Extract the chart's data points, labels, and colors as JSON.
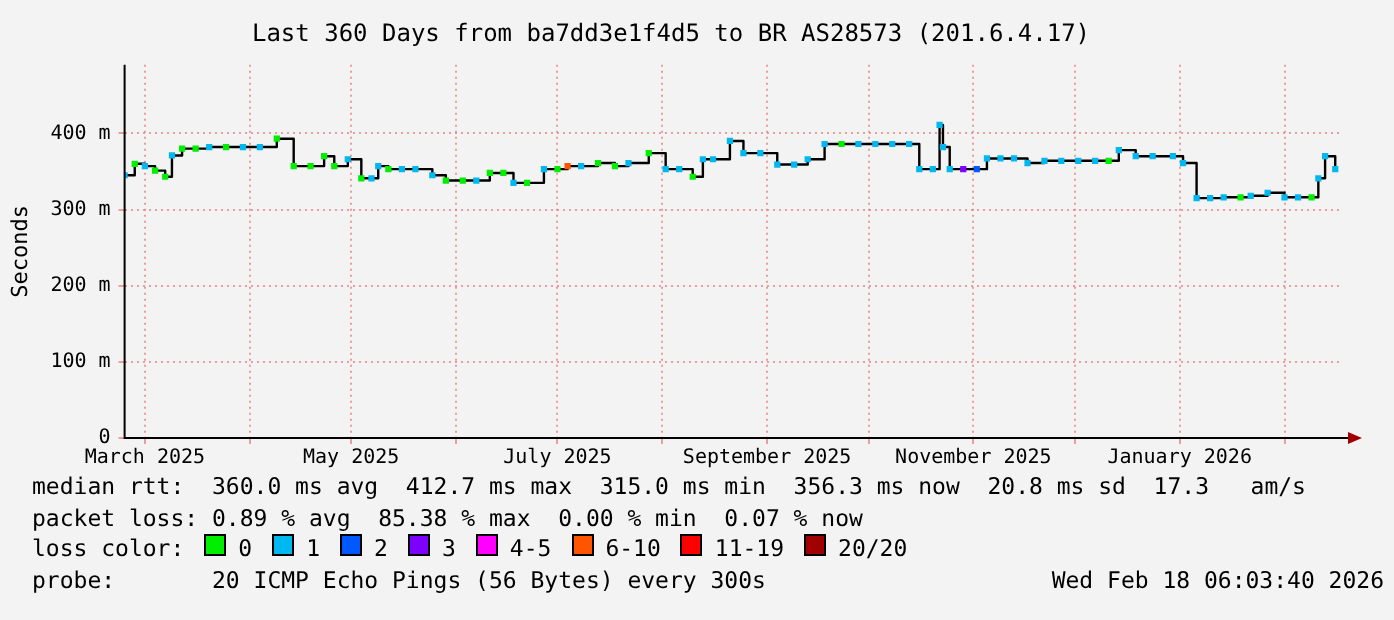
{
  "chart_data": {
    "type": "step",
    "title": "Last 360 Days from ba7dd3e1f4d5 to BR AS28573 (201.6.4.17)",
    "ylabel": "Seconds",
    "legend_title": "loss color:",
    "legend": "bottom",
    "grid": true,
    "x": [
      "2025-02-23",
      "2025-02-26",
      "2025-03-01",
      "2025-03-04",
      "2025-03-07",
      "2025-03-09",
      "2025-03-12",
      "2025-03-16",
      "2025-03-20",
      "2025-03-25",
      "2025-03-30",
      "2025-04-04",
      "2025-04-09",
      "2025-04-14",
      "2025-04-19",
      "2025-04-23",
      "2025-04-26",
      "2025-04-30",
      "2025-05-04",
      "2025-05-07",
      "2025-05-09",
      "2025-05-12",
      "2025-05-16",
      "2025-05-20",
      "2025-05-25",
      "2025-05-29",
      "2025-06-03",
      "2025-06-07",
      "2025-06-11",
      "2025-06-15",
      "2025-06-18",
      "2025-06-22",
      "2025-06-27",
      "2025-07-01",
      "2025-07-04",
      "2025-07-08",
      "2025-07-13",
      "2025-07-18",
      "2025-07-22",
      "2025-07-28",
      "2025-08-02",
      "2025-08-06",
      "2025-08-10",
      "2025-08-13",
      "2025-08-16",
      "2025-08-21",
      "2025-08-25",
      "2025-08-30",
      "2025-09-04",
      "2025-09-09",
      "2025-09-13",
      "2025-09-18",
      "2025-09-23",
      "2025-09-28",
      "2025-10-03",
      "2025-10-08",
      "2025-10-13",
      "2025-10-16",
      "2025-10-20",
      "2025-10-22",
      "2025-10-23",
      "2025-10-25",
      "2025-10-29",
      "2025-11-02",
      "2025-11-05",
      "2025-11-09",
      "2025-11-13",
      "2025-11-17",
      "2025-11-22",
      "2025-11-27",
      "2025-12-02",
      "2025-12-07",
      "2025-12-11",
      "2025-12-14",
      "2025-12-19",
      "2025-12-24",
      "2025-12-30",
      "2026-01-02",
      "2026-01-06",
      "2026-01-10",
      "2026-01-14",
      "2026-01-19",
      "2026-01-22",
      "2026-01-27",
      "2026-02-01",
      "2026-02-05",
      "2026-02-09",
      "2026-02-11",
      "2026-02-13",
      "2026-02-16"
    ],
    "series": [
      {
        "color": "#000000",
        "marker": "none",
        "values": [
          345,
          360,
          357,
          351,
          343,
          371,
          380,
          380,
          382,
          382,
          382,
          382,
          393,
          357,
          357,
          370,
          357,
          366,
          341,
          341,
          357,
          353,
          353,
          353,
          345,
          338,
          338,
          338,
          348,
          348,
          335,
          335,
          353,
          353,
          357,
          357,
          361,
          357,
          361,
          374,
          353,
          353,
          343,
          366,
          366,
          390,
          374,
          374,
          359,
          359,
          366,
          386,
          386,
          386,
          386,
          386,
          386,
          353,
          353,
          411,
          382,
          353,
          353,
          353,
          367,
          367,
          367,
          361,
          364,
          364,
          364,
          364,
          364,
          378,
          370,
          370,
          370,
          361,
          315,
          315,
          316,
          316,
          318,
          322,
          316,
          316,
          316,
          341,
          370,
          353
        ]
      },
      {
        "type": "scatter",
        "name": "0",
        "color": "#00ee00",
        "marker": "square",
        "values": [
          null,
          360,
          null,
          351,
          343,
          null,
          380,
          380,
          null,
          382,
          null,
          null,
          393,
          357,
          357,
          370,
          357,
          null,
          341,
          null,
          null,
          353,
          null,
          null,
          null,
          338,
          338,
          null,
          348,
          348,
          null,
          335,
          null,
          353,
          null,
          null,
          361,
          357,
          null,
          374,
          null,
          null,
          343,
          null,
          null,
          null,
          null,
          null,
          null,
          null,
          null,
          null,
          386,
          null,
          null,
          null,
          null,
          null,
          null,
          null,
          null,
          null,
          null,
          null,
          null,
          null,
          null,
          null,
          null,
          null,
          null,
          null,
          364,
          null,
          null,
          null,
          null,
          null,
          null,
          null,
          null,
          316,
          null,
          null,
          null,
          null,
          316,
          null,
          null,
          null
        ]
      },
      {
        "type": "scatter",
        "name": "1",
        "color": "#00b8f0",
        "marker": "square",
        "values": [
          345,
          null,
          357,
          null,
          null,
          371,
          null,
          null,
          382,
          null,
          382,
          382,
          null,
          null,
          null,
          null,
          null,
          366,
          null,
          341,
          357,
          null,
          353,
          353,
          345,
          null,
          null,
          338,
          null,
          null,
          335,
          null,
          353,
          null,
          null,
          357,
          null,
          null,
          361,
          null,
          353,
          353,
          null,
          366,
          366,
          390,
          374,
          374,
          359,
          359,
          366,
          386,
          null,
          386,
          386,
          386,
          386,
          353,
          353,
          411,
          382,
          353,
          null,
          null,
          367,
          367,
          367,
          361,
          364,
          364,
          364,
          364,
          null,
          378,
          370,
          370,
          370,
          361,
          315,
          315,
          316,
          null,
          318,
          322,
          316,
          316,
          null,
          341,
          370,
          353
        ]
      },
      {
        "type": "scatter",
        "name": "2",
        "color": "#0059ff",
        "marker": "square",
        "values": [
          null,
          null,
          null,
          null,
          null,
          null,
          null,
          null,
          null,
          null,
          null,
          null,
          null,
          null,
          null,
          null,
          null,
          null,
          null,
          null,
          null,
          null,
          null,
          null,
          null,
          null,
          null,
          null,
          null,
          null,
          null,
          null,
          null,
          null,
          null,
          null,
          null,
          null,
          null,
          null,
          null,
          null,
          null,
          null,
          null,
          null,
          null,
          null,
          null,
          null,
          null,
          null,
          null,
          null,
          null,
          null,
          null,
          null,
          null,
          null,
          null,
          null,
          null,
          353,
          null,
          null,
          null,
          null,
          null,
          null,
          null,
          null,
          null,
          null,
          null,
          null,
          null,
          null,
          null,
          null,
          null,
          null,
          null,
          null,
          null,
          null,
          null,
          null,
          null,
          null
        ]
      },
      {
        "type": "scatter",
        "name": "3",
        "color": "#7e00ff",
        "marker": "square",
        "values": [
          null,
          null,
          null,
          null,
          null,
          null,
          null,
          null,
          null,
          null,
          null,
          null,
          null,
          null,
          null,
          null,
          null,
          null,
          null,
          null,
          null,
          null,
          null,
          null,
          null,
          null,
          null,
          null,
          null,
          null,
          null,
          null,
          null,
          null,
          null,
          null,
          null,
          null,
          null,
          null,
          null,
          null,
          null,
          null,
          null,
          null,
          null,
          null,
          null,
          null,
          null,
          null,
          null,
          null,
          null,
          null,
          null,
          null,
          null,
          null,
          null,
          null,
          353,
          null,
          null,
          null,
          null,
          null,
          null,
          null,
          null,
          null,
          null,
          null,
          null,
          null,
          null,
          null,
          null,
          null,
          null,
          null,
          null,
          null,
          null,
          null,
          null,
          null,
          null,
          null
        ]
      },
      {
        "type": "scatter",
        "name": "4-5",
        "color": "#ff00ff",
        "marker": "square",
        "values": [
          null,
          null,
          null,
          null,
          null,
          null,
          null,
          null,
          null,
          null,
          null,
          null,
          null,
          null,
          null,
          null,
          null,
          null,
          null,
          null,
          null,
          null,
          null,
          null,
          null,
          null,
          null,
          null,
          null,
          null,
          null,
          null,
          null,
          null,
          null,
          null,
          null,
          null,
          null,
          null,
          null,
          null,
          null,
          null,
          null,
          null,
          null,
          null,
          null,
          null,
          null,
          null,
          null,
          null,
          null,
          null,
          null,
          null,
          null,
          null,
          null,
          null,
          null,
          null,
          null,
          null,
          null,
          null,
          null,
          null,
          null,
          null,
          null,
          null,
          null,
          null,
          null,
          null,
          null,
          null,
          null,
          null,
          null,
          null,
          null,
          null,
          null,
          null,
          null,
          null
        ]
      },
      {
        "type": "scatter",
        "name": "6-10",
        "color": "#ff5500",
        "marker": "square",
        "values": [
          null,
          null,
          null,
          null,
          null,
          null,
          null,
          null,
          null,
          null,
          null,
          null,
          null,
          null,
          null,
          null,
          null,
          null,
          null,
          null,
          null,
          null,
          null,
          null,
          null,
          null,
          null,
          null,
          null,
          null,
          null,
          null,
          null,
          null,
          357,
          null,
          null,
          null,
          null,
          null,
          null,
          null,
          null,
          null,
          null,
          null,
          null,
          null,
          null,
          null,
          null,
          null,
          null,
          null,
          null,
          null,
          null,
          null,
          null,
          null,
          null,
          null,
          null,
          null,
          null,
          null,
          null,
          null,
          null,
          null,
          null,
          null,
          null,
          null,
          null,
          null,
          null,
          null,
          null,
          null,
          null,
          null,
          null,
          null,
          null,
          null,
          null,
          null,
          null,
          null
        ]
      },
      {
        "type": "scatter",
        "name": "11-19",
        "color": "#ff0000",
        "marker": "square",
        "values": [
          null,
          null,
          null,
          null,
          null,
          null,
          null,
          null,
          null,
          null,
          null,
          null,
          null,
          null,
          null,
          null,
          null,
          null,
          null,
          null,
          null,
          null,
          null,
          null,
          null,
          null,
          null,
          null,
          null,
          null,
          null,
          null,
          null,
          null,
          null,
          null,
          null,
          null,
          null,
          null,
          null,
          null,
          null,
          null,
          null,
          null,
          null,
          null,
          null,
          null,
          null,
          null,
          null,
          null,
          null,
          null,
          null,
          null,
          null,
          null,
          null,
          null,
          null,
          null,
          null,
          null,
          null,
          null,
          null,
          null,
          null,
          null,
          null,
          null,
          null,
          null,
          null,
          null,
          null,
          null,
          null,
          null,
          null,
          null,
          null,
          null,
          null,
          null,
          null,
          null
        ]
      },
      {
        "type": "scatter",
        "name": "20/20",
        "color": "#a00000",
        "marker": "square",
        "values": [
          null,
          null,
          null,
          null,
          null,
          null,
          null,
          null,
          null,
          null,
          null,
          null,
          null,
          null,
          null,
          null,
          null,
          null,
          null,
          null,
          null,
          null,
          null,
          null,
          null,
          null,
          null,
          null,
          null,
          null,
          null,
          null,
          null,
          null,
          null,
          null,
          null,
          null,
          null,
          null,
          null,
          null,
          null,
          null,
          null,
          null,
          null,
          null,
          null,
          null,
          null,
          null,
          null,
          null,
          null,
          null,
          null,
          null,
          null,
          null,
          null,
          null,
          null,
          null,
          null,
          null,
          null,
          null,
          null,
          null,
          null,
          null,
          null,
          null,
          null,
          null,
          null,
          null,
          null,
          null,
          null,
          null,
          null,
          null,
          null,
          null,
          null,
          null,
          null,
          null
        ]
      }
    ],
    "xlim": [
      "2025-02-23",
      "2026-02-18"
    ],
    "xticks": [
      {
        "value": "2025-03-01",
        "label": "March 2025"
      },
      {
        "value": "2025-04-01",
        "label": null
      },
      {
        "value": "2025-05-01",
        "label": "May 2025"
      },
      {
        "value": "2025-06-01",
        "label": null
      },
      {
        "value": "2025-07-01",
        "label": "July 2025"
      },
      {
        "value": "2025-08-01",
        "label": null
      },
      {
        "value": "2025-09-01",
        "label": "September 2025"
      },
      {
        "value": "2025-10-01",
        "label": null
      },
      {
        "value": "2025-11-01",
        "label": "November 2025"
      },
      {
        "value": "2025-12-01",
        "label": null
      },
      {
        "value": "2026-01-01",
        "label": "January 2026"
      },
      {
        "value": "2026-02-01",
        "label": null
      }
    ],
    "ylim": [
      0,
      490
    ],
    "yticks": [
      0,
      {
        "value": 100,
        "label": "100 m"
      },
      {
        "value": 200,
        "label": "200 m"
      },
      {
        "value": 300,
        "label": "300 m"
      },
      {
        "value": 400,
        "label": "400 m"
      }
    ],
    "annotations": [
      "median rtt:  360.0 ms avg  412.7 ms max  315.0 ms min  356.3 ms now  20.8 ms sd  17.3   am/s",
      "packet loss: 0.89 % avg  85.38 % max  0.00 % min  0.07 % now",
      "probe:       20 ICMP Echo Pings (56 Bytes) every 300s",
      "Wed Feb 18 06:03:40 2026"
    ]
  }
}
